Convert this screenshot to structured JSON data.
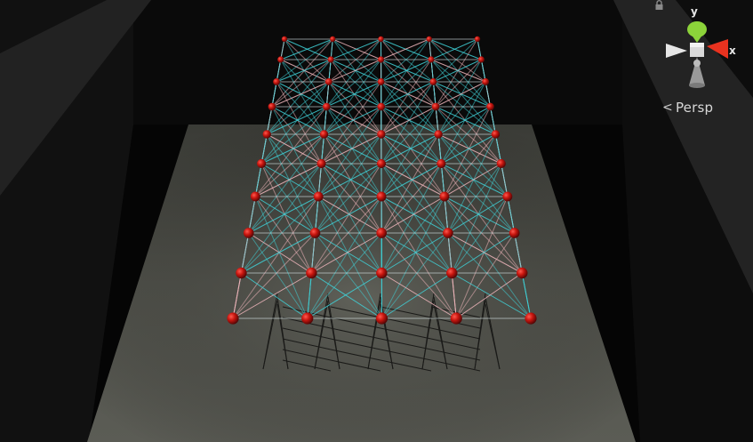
{
  "viewport": {
    "projection_label": "Persp",
    "gizmo": {
      "x_label": "x",
      "y_label": "y",
      "lock_icon": "lock-icon",
      "x_color": "#e8321f",
      "y_color": "#8cd33a",
      "z_color": "#d9d9d9"
    }
  },
  "scene": {
    "node_color": "#c8160f",
    "strut_color_primary": "#3fd0d6",
    "strut_color_secondary": "#f0b6bc",
    "ground_color": "#4a4b45",
    "rows": 9,
    "cols": 5
  }
}
